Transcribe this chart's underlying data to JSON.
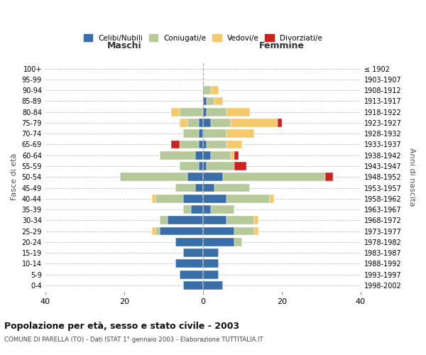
{
  "age_groups": [
    "0-4",
    "5-9",
    "10-14",
    "15-19",
    "20-24",
    "25-29",
    "30-34",
    "35-39",
    "40-44",
    "45-49",
    "50-54",
    "55-59",
    "60-64",
    "65-69",
    "70-74",
    "75-79",
    "80-84",
    "85-89",
    "90-94",
    "95-99",
    "100+"
  ],
  "birth_years": [
    "1998-2002",
    "1993-1997",
    "1988-1992",
    "1983-1987",
    "1978-1982",
    "1973-1977",
    "1968-1972",
    "1963-1967",
    "1958-1962",
    "1953-1957",
    "1948-1952",
    "1943-1947",
    "1938-1942",
    "1933-1937",
    "1928-1932",
    "1923-1927",
    "1918-1922",
    "1913-1917",
    "1908-1912",
    "1903-1907",
    "≤ 1902"
  ],
  "colors": {
    "celibi": "#3a6ea8",
    "coniugati": "#b5c99a",
    "vedovi": "#f5c96b",
    "divorziati": "#cc2222"
  },
  "maschi": {
    "celibi": [
      5,
      6,
      7,
      5,
      7,
      11,
      9,
      3,
      5,
      2,
      4,
      1,
      2,
      1,
      1,
      1,
      0,
      0,
      0,
      0,
      0
    ],
    "coniugati": [
      0,
      0,
      0,
      0,
      0,
      1,
      2,
      2,
      7,
      5,
      17,
      5,
      9,
      5,
      4,
      3,
      6,
      0,
      0,
      0,
      0
    ],
    "vedovi": [
      0,
      0,
      0,
      0,
      0,
      1,
      0,
      0,
      1,
      0,
      0,
      0,
      0,
      0,
      0,
      2,
      2,
      0,
      0,
      0,
      0
    ],
    "divorziati": [
      0,
      0,
      0,
      0,
      0,
      0,
      0,
      0,
      0,
      0,
      0,
      0,
      0,
      2,
      0,
      0,
      0,
      0,
      0,
      0,
      0
    ]
  },
  "femmine": {
    "celibi": [
      5,
      4,
      4,
      4,
      8,
      8,
      6,
      2,
      6,
      3,
      5,
      1,
      2,
      1,
      0,
      2,
      1,
      1,
      0,
      0,
      0
    ],
    "coniugati": [
      0,
      0,
      0,
      0,
      2,
      5,
      7,
      6,
      11,
      9,
      26,
      7,
      5,
      5,
      6,
      5,
      5,
      2,
      2,
      0,
      0
    ],
    "vedovi": [
      0,
      0,
      0,
      0,
      0,
      1,
      1,
      0,
      1,
      0,
      0,
      0,
      1,
      4,
      7,
      12,
      6,
      2,
      2,
      0,
      0
    ],
    "divorziati": [
      0,
      0,
      0,
      0,
      0,
      0,
      0,
      0,
      0,
      0,
      2,
      3,
      1,
      0,
      0,
      1,
      0,
      0,
      0,
      0,
      0
    ]
  },
  "xlim": 40,
  "title": "Popolazione per età, sesso e stato civile - 2003",
  "subtitle": "COMUNE DI PARELLA (TO) - Dati ISTAT 1° gennaio 2003 - Elaborazione TUTTITALIA.IT",
  "xlabel_left": "Maschi",
  "xlabel_right": "Femmine",
  "ylabel_left": "Fasce di età",
  "ylabel_right": "Anni di nascita",
  "legend_labels": [
    "Celibi/Nubili",
    "Coniugati/e",
    "Vedovi/e",
    "Divorziati/e"
  ],
  "bg_color": "#ffffff",
  "grid_color": "#cccccc"
}
